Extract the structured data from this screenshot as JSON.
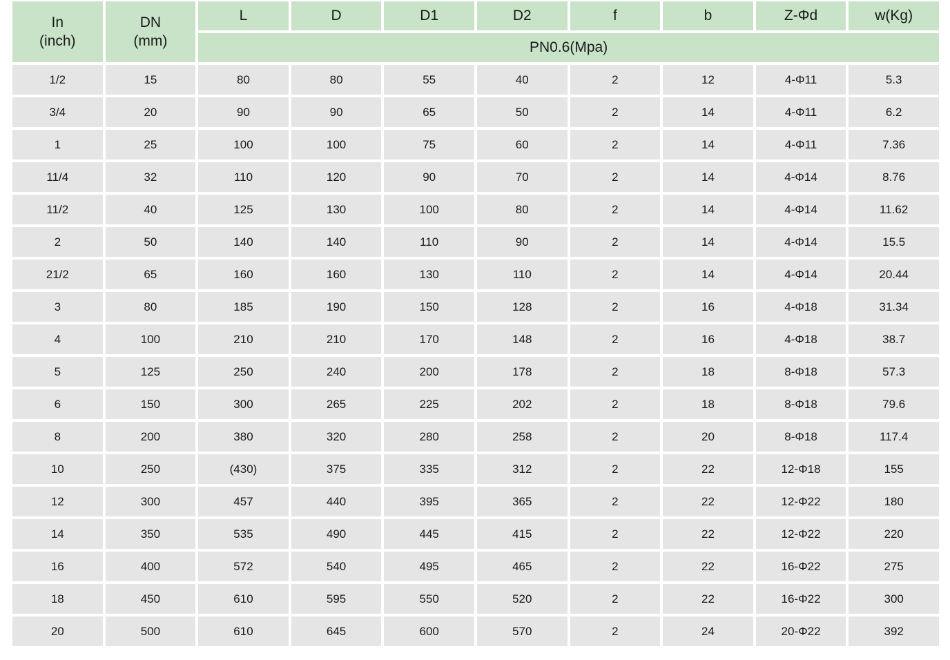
{
  "table": {
    "corner_headers": [
      {
        "line1": "In",
        "line2": "(inch)"
      },
      {
        "line1": "DN",
        "line2": "(mm)"
      }
    ],
    "measure_columns": [
      "L",
      "D",
      "D1",
      "D2",
      "f",
      "b",
      "Z-Φd",
      "w(Kg)"
    ],
    "pressure_group_label": "PN0.6(Mpa)",
    "rows": [
      [
        "1/2",
        "15",
        "80",
        "80",
        "55",
        "40",
        "2",
        "12",
        "4-Φ11",
        "5.3"
      ],
      [
        "3/4",
        "20",
        "90",
        "90",
        "65",
        "50",
        "2",
        "14",
        "4-Φ11",
        "6.2"
      ],
      [
        "1",
        "25",
        "100",
        "100",
        "75",
        "60",
        "2",
        "14",
        "4-Φ11",
        "7.36"
      ],
      [
        "11/4",
        "32",
        "110",
        "120",
        "90",
        "70",
        "2",
        "14",
        "4-Φ14",
        "8.76"
      ],
      [
        "11/2",
        "40",
        "125",
        "130",
        "100",
        "80",
        "2",
        "14",
        "4-Φ14",
        "11.62"
      ],
      [
        "2",
        "50",
        "140",
        "140",
        "110",
        "90",
        "2",
        "14",
        "4-Φ14",
        "15.5"
      ],
      [
        "21/2",
        "65",
        "160",
        "160",
        "130",
        "110",
        "2",
        "14",
        "4-Φ14",
        "20.44"
      ],
      [
        "3",
        "80",
        "185",
        "190",
        "150",
        "128",
        "2",
        "16",
        "4-Φ18",
        "31.34"
      ],
      [
        "4",
        "100",
        "210",
        "210",
        "170",
        "148",
        "2",
        "16",
        "4-Φ18",
        "38.7"
      ],
      [
        "5",
        "125",
        "250",
        "240",
        "200",
        "178",
        "2",
        "18",
        "8-Φ18",
        "57.3"
      ],
      [
        "6",
        "150",
        "300",
        "265",
        "225",
        "202",
        "2",
        "18",
        "8-Φ18",
        "79.6"
      ],
      [
        "8",
        "200",
        "380",
        "320",
        "280",
        "258",
        "2",
        "20",
        "8-Φ18",
        "117.4"
      ],
      [
        "10",
        "250",
        "(430)",
        "375",
        "335",
        "312",
        "2",
        "22",
        "12-Φ18",
        "155"
      ],
      [
        "12",
        "300",
        "457",
        "440",
        "395",
        "365",
        "2",
        "22",
        "12-Φ22",
        "180"
      ],
      [
        "14",
        "350",
        "535",
        "490",
        "445",
        "415",
        "2",
        "22",
        "12-Φ22",
        "220"
      ],
      [
        "16",
        "400",
        "572",
        "540",
        "495",
        "465",
        "2",
        "22",
        "16-Φ22",
        "275"
      ],
      [
        "18",
        "450",
        "610",
        "595",
        "550",
        "520",
        "2",
        "22",
        "16-Φ22",
        "300"
      ],
      [
        "20",
        "500",
        "610",
        "645",
        "600",
        "570",
        "2",
        "24",
        "20-Φ22",
        "392"
      ]
    ]
  },
  "colors": {
    "header_green": "#c8e3c8",
    "row_gray": "#e5e5e5",
    "text": "#1a1a1a",
    "page_bg": "#ffffff"
  }
}
